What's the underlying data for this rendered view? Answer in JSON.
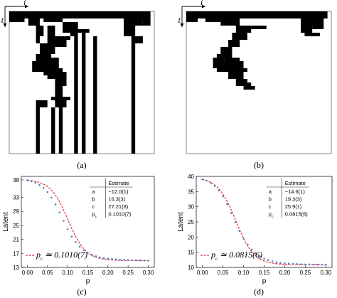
{
  "colors": {
    "fit_line": "#e8202a",
    "data_points": "#4a7dbf",
    "cells": "#000000"
  },
  "panels": {
    "a": {
      "caption": "(a)",
      "x_axis_label": "i",
      "y_axis_label": "t",
      "grid_cols": 38,
      "grid_rows": 40,
      "cells": [
        [
          0,
          0,
          37,
          2
        ],
        [
          0,
          2,
          4,
          3
        ],
        [
          5,
          2,
          8,
          4
        ],
        [
          9,
          2,
          14,
          3
        ],
        [
          14,
          3,
          18,
          5
        ],
        [
          17,
          5,
          21,
          6
        ],
        [
          30,
          2,
          35,
          4
        ],
        [
          35,
          2,
          37,
          4
        ],
        [
          7,
          4,
          9,
          7
        ],
        [
          7,
          7,
          8,
          9
        ],
        [
          14,
          3,
          16,
          6
        ],
        [
          16,
          4,
          18,
          7
        ],
        [
          12,
          7,
          16,
          8
        ],
        [
          11,
          8,
          15,
          10
        ],
        [
          30,
          4,
          33,
          7
        ],
        [
          32,
          7,
          35,
          9
        ],
        [
          10,
          4,
          12,
          10
        ],
        [
          8,
          9,
          12,
          12
        ],
        [
          7,
          12,
          11,
          13
        ],
        [
          7,
          13,
          10,
          14
        ],
        [
          9,
          13,
          13,
          14
        ],
        [
          6,
          14,
          13,
          16
        ],
        [
          6,
          16,
          14,
          17
        ],
        [
          9,
          17,
          15,
          18
        ],
        [
          10,
          18,
          15,
          19
        ],
        [
          12,
          19,
          15,
          21
        ],
        [
          12,
          21,
          14,
          24
        ],
        [
          11,
          24,
          16,
          25
        ],
        [
          7,
          25,
          10,
          27
        ],
        [
          12,
          25,
          15,
          27
        ],
        [
          7,
          27,
          8,
          40
        ],
        [
          11,
          27,
          12,
          40
        ],
        [
          13,
          27,
          14,
          40
        ],
        [
          17,
          7,
          18,
          40
        ],
        [
          19,
          6,
          20,
          40
        ],
        [
          22,
          7,
          23,
          40
        ],
        [
          32,
          9,
          33,
          40
        ]
      ]
    },
    "b": {
      "caption": "(b)",
      "x_axis_label": "i",
      "y_axis_label": "t",
      "grid_cols": 38,
      "grid_rows": 40,
      "cells": [
        [
          0,
          0,
          37,
          2
        ],
        [
          0,
          2,
          3,
          3
        ],
        [
          5,
          2,
          9,
          3
        ],
        [
          9,
          2,
          14,
          4
        ],
        [
          13,
          4,
          17,
          6
        ],
        [
          17,
          4,
          21,
          5
        ],
        [
          30,
          2,
          36,
          4
        ],
        [
          33,
          4,
          36,
          5
        ],
        [
          30,
          4,
          33,
          6
        ],
        [
          31,
          6,
          35,
          7
        ],
        [
          12,
          6,
          16,
          8
        ],
        [
          11,
          8,
          14,
          10
        ],
        [
          9,
          10,
          12,
          12
        ],
        [
          8,
          12,
          12,
          13
        ],
        [
          7,
          13,
          10,
          14
        ],
        [
          10,
          13,
          14,
          14
        ],
        [
          7,
          14,
          15,
          16
        ],
        [
          8,
          16,
          16,
          17
        ],
        [
          11,
          17,
          15,
          19
        ],
        [
          13,
          19,
          16,
          20
        ],
        [
          13,
          20,
          17,
          21
        ],
        [
          15,
          21,
          18,
          22
        ]
      ]
    },
    "c": {
      "caption": "(c)",
      "chart_data": {
        "type": "scatter",
        "xlabel": "p",
        "ylabel": "Latent",
        "xlim": [
          -0.015,
          0.315
        ],
        "ylim": [
          13,
          39
        ],
        "xticks": [
          "0.00",
          "0.05",
          "0.10",
          "0.15",
          "0.20",
          "0.25",
          "0.30"
        ],
        "yticks": [
          "13",
          "17",
          "21",
          "25",
          "29",
          "33",
          "38"
        ],
        "ytick_values": [
          13,
          17,
          21,
          25,
          29,
          33,
          38
        ],
        "x": [
          0.0,
          0.01,
          0.02,
          0.03,
          0.04,
          0.05,
          0.06,
          0.07,
          0.08,
          0.09,
          0.1,
          0.11,
          0.12,
          0.13,
          0.14,
          0.15,
          0.16,
          0.17,
          0.18,
          0.19,
          0.2,
          0.21,
          0.22,
          0.23,
          0.24,
          0.25,
          0.26,
          0.27,
          0.28,
          0.29,
          0.3
        ],
        "y": [
          37.9,
          37.6,
          37.2,
          36.5,
          35.7,
          34.5,
          32.9,
          31.0,
          28.7,
          26.3,
          23.9,
          21.8,
          20.2,
          18.9,
          17.9,
          17.2,
          16.6,
          16.2,
          15.9,
          15.7,
          15.5,
          15.4,
          15.3,
          15.2,
          15.15,
          15.1,
          15.05,
          15.0,
          15.0,
          14.95,
          14.95
        ],
        "fit": {
          "a": -12.0,
          "b": 16.3,
          "c": 27.21,
          "pc": 0.101
        },
        "legend_label": "p",
        "legend_sub": "c",
        "legend_value": " ≃ 0.1010(7)",
        "table": {
          "header": "Estimate",
          "rows": [
            {
              "name": "a",
              "sub": "",
              "value": "−12.0(1)"
            },
            {
              "name": "b",
              "sub": "",
              "value": "16.3(3)"
            },
            {
              "name": "c",
              "sub": "",
              "value": "27.21(8)"
            },
            {
              "name": "p",
              "sub": "c",
              "value": "0.1010(7)"
            }
          ]
        }
      }
    },
    "d": {
      "caption": "(d)",
      "chart_data": {
        "type": "scatter",
        "xlabel": "p",
        "ylabel": "Latent",
        "xlim": [
          -0.015,
          0.315
        ],
        "ylim": [
          10,
          40
        ],
        "xticks": [
          "0.00",
          "0.05",
          "0.10",
          "0.15",
          "0.20",
          "0.25",
          "0.30"
        ],
        "yticks": [
          "10",
          "15",
          "20",
          "25",
          "30",
          "35",
          "40"
        ],
        "ytick_values": [
          10,
          15,
          20,
          25,
          30,
          35,
          40
        ],
        "x": [
          0.0,
          0.01,
          0.02,
          0.03,
          0.04,
          0.05,
          0.06,
          0.07,
          0.08,
          0.09,
          0.1,
          0.11,
          0.12,
          0.13,
          0.14,
          0.15,
          0.16,
          0.17,
          0.18,
          0.19,
          0.2,
          0.21,
          0.22,
          0.23,
          0.24,
          0.25,
          0.26,
          0.27,
          0.28,
          0.29,
          0.3
        ],
        "y": [
          39.0,
          38.6,
          37.9,
          36.9,
          35.4,
          33.4,
          30.8,
          27.9,
          24.9,
          22.0,
          19.5,
          17.5,
          15.9,
          14.6,
          13.6,
          12.9,
          12.4,
          12.0,
          11.7,
          11.5,
          11.35,
          11.25,
          11.15,
          11.1,
          11.05,
          11.0,
          11.0,
          10.95,
          10.95,
          10.9,
          10.9
        ],
        "fit": {
          "a": -14.6,
          "b": 19.3,
          "c": 25.9,
          "pc": 0.0815
        },
        "legend_label": "p",
        "legend_sub": "c",
        "legend_value": " ≃ 0.0815(6)",
        "table": {
          "header": "Estimate",
          "rows": [
            {
              "name": "a",
              "sub": "",
              "value": "−14.6(1)"
            },
            {
              "name": "b",
              "sub": "",
              "value": "19.3(3)"
            },
            {
              "name": "c",
              "sub": "",
              "value": "25.9(1)"
            },
            {
              "name": "p",
              "sub": "c",
              "value": "0.0815(6)"
            }
          ]
        }
      }
    }
  }
}
